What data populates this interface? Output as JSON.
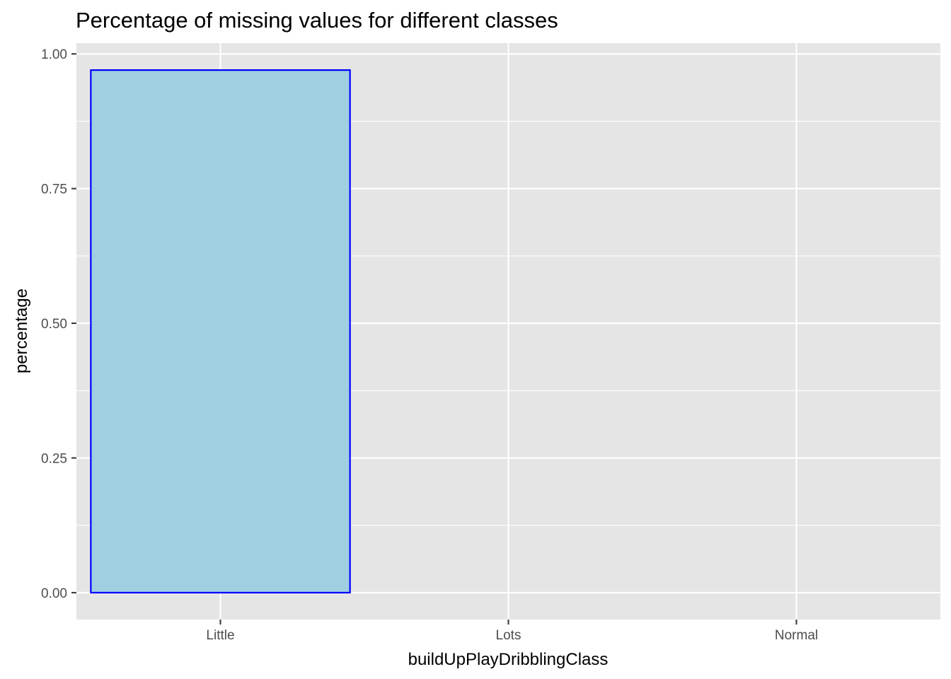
{
  "chart_data": {
    "type": "bar",
    "title": "Percentage of missing values for different classes",
    "xlabel": "buildUpPlayDribblingClass",
    "ylabel": "percentage",
    "categories": [
      "Little",
      "Lots",
      "Normal"
    ],
    "values": [
      0.97,
      0,
      0
    ],
    "ylim": [
      -0.05,
      1.02
    ],
    "yticks": [
      0,
      0.25,
      0.5,
      0.75,
      1
    ],
    "ytick_labels": [
      "0.00",
      "0.25",
      "0.50",
      "0.75",
      "1.00"
    ],
    "grid": true,
    "legend": "none",
    "colors": {
      "panel_background": "#e5e5e5",
      "grid_line": "#ffffff",
      "bar_fill": "#a0cfe1",
      "bar_outline": "#0000ff",
      "tick_text": "#4d4d4d"
    }
  }
}
